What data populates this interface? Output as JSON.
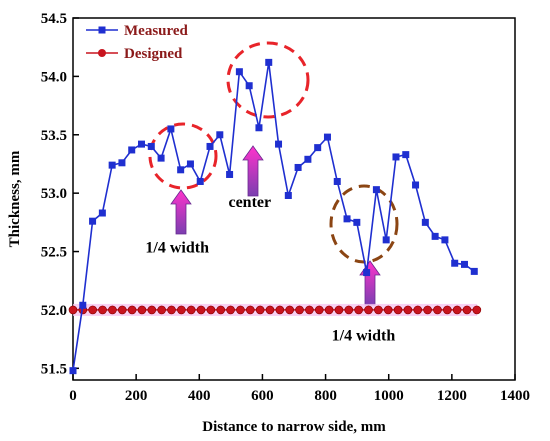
{
  "chart_data": {
    "type": "line",
    "xlabel": "Distance to narrow side, mm",
    "ylabel": "Thickness, mm",
    "xlim": [
      0,
      1400
    ],
    "ylim": [
      51.4,
      54.5
    ],
    "xticks": [
      0,
      200,
      400,
      600,
      800,
      1000,
      1200,
      1400
    ],
    "yticks": [
      51.5,
      52.0,
      52.5,
      53.0,
      53.5,
      54.0,
      54.5
    ],
    "legend_position": "top-left",
    "grid": false,
    "series": [
      {
        "name": "Measured",
        "color": "#1f2fd0",
        "marker": "square",
        "x": [
          0,
          31,
          62,
          93,
          124,
          155,
          186,
          217,
          248,
          279,
          310,
          341,
          372,
          403,
          434,
          465,
          496,
          527,
          558,
          589,
          620,
          651,
          682,
          713,
          744,
          775,
          806,
          837,
          868,
          899,
          930,
          961,
          992,
          1023,
          1054,
          1085,
          1116,
          1147,
          1178,
          1209,
          1240,
          1271
        ],
        "y": [
          51.48,
          52.04,
          52.76,
          52.83,
          53.24,
          53.26,
          53.37,
          53.42,
          53.4,
          53.3,
          53.55,
          53.2,
          53.25,
          53.1,
          53.4,
          53.5,
          53.16,
          54.04,
          53.92,
          53.56,
          54.12,
          53.42,
          52.98,
          53.22,
          53.29,
          53.39,
          53.48,
          53.1,
          52.78,
          52.75,
          52.32,
          53.03,
          52.6,
          53.31,
          53.33,
          53.07,
          52.75,
          52.63,
          52.6,
          52.4,
          52.39,
          52.33
        ]
      },
      {
        "name": "Designed",
        "color": "#c8141e",
        "marker": "circle",
        "value": 52.0
      }
    ],
    "annotations": [
      {
        "text": "center",
        "x": 560,
        "y": 52.88
      },
      {
        "text": "1/4 width",
        "x": 330,
        "y": 52.49
      },
      {
        "text": "1/4 width",
        "x": 920,
        "y": 51.74
      }
    ]
  }
}
